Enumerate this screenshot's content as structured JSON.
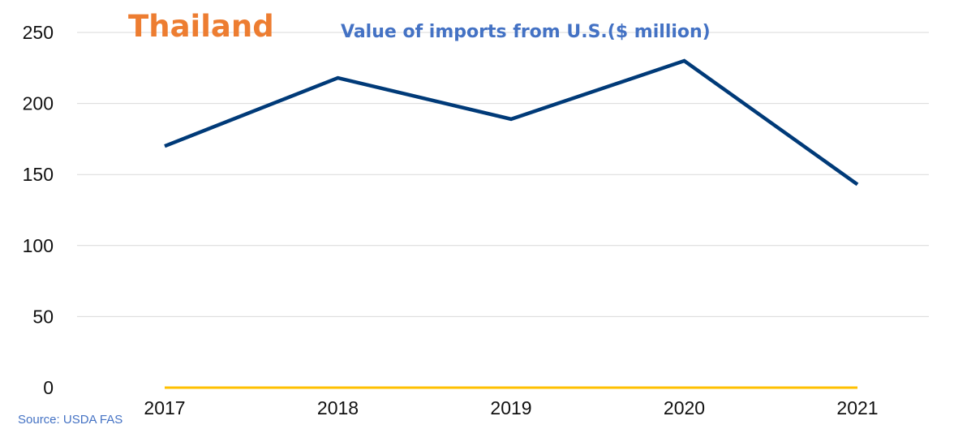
{
  "chart_data": {
    "type": "line",
    "title": "Thailand",
    "subtitle": "Value of imports from U.S.($ million)",
    "categories": [
      "2017",
      "2018",
      "2019",
      "2020",
      "2021"
    ],
    "series": [
      {
        "values": [
          170,
          218,
          189,
          230,
          143
        ],
        "color": "#003a78"
      },
      {
        "values": [
          0,
          0,
          0,
          0,
          0
        ],
        "color": "#ffc000"
      }
    ],
    "ylim": [
      0,
      250
    ],
    "yticks": [
      0,
      50,
      100,
      150,
      200,
      250
    ],
    "grid": true,
    "legend": "none",
    "source": "Source: USDA FAS",
    "colors": {
      "title": "#ed7d31",
      "subtitle": "#4472c4",
      "source": "#4472c4",
      "grid": "#d9d9d9",
      "text": "#111111"
    }
  }
}
